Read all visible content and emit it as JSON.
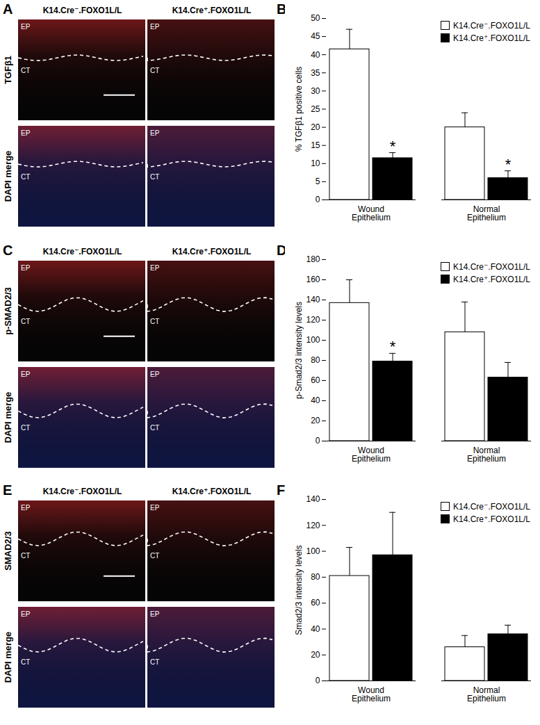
{
  "image_panels": [
    {
      "panel": "A",
      "columns": [
        "K14.Cre⁻.FOXO1L/L",
        "K14.Cre⁺.FOXO1L/L"
      ],
      "rows": [
        "TGFβ1",
        "DAPI merge"
      ],
      "regions": [
        "EP",
        "CT"
      ]
    },
    {
      "panel": "C",
      "columns": [
        "K14.Cre⁻.FOXO1L/L",
        "K14.Cre⁺.FOXO1L/L"
      ],
      "rows": [
        "p-SMAD2/3",
        "DAPI merge"
      ],
      "regions": [
        "EP",
        "CT"
      ]
    },
    {
      "panel": "E",
      "columns": [
        "K14.Cre⁻.FOXO1L/L",
        "K14.Cre⁺.FOXO1L/L"
      ],
      "rows": [
        "SMAD2/3",
        "DAPI merge"
      ],
      "regions": [
        "EP",
        "CT"
      ]
    }
  ],
  "chart_data": [
    {
      "panel": "B",
      "type": "bar",
      "categories": [
        "Wound Epithelium",
        "Normal Epithelium"
      ],
      "ylabel": "% TGFβ1 positive cells",
      "ylim": [
        0,
        50
      ],
      "yticks": [
        0,
        5,
        10,
        15,
        20,
        25,
        30,
        35,
        40,
        45,
        50
      ],
      "legend": "top-right",
      "series": [
        {
          "name": "K14.Cre⁻.FOXO1L/L",
          "color": "#ffffff",
          "values": [
            41.5,
            20
          ],
          "errors": [
            5.5,
            4
          ],
          "annotations": [
            null,
            null
          ]
        },
        {
          "name": "K14.Cre⁺.FOXO1L/L",
          "color": "#000000",
          "values": [
            11.5,
            6
          ],
          "errors": [
            1.5,
            2
          ],
          "annotations": [
            "*",
            "*"
          ]
        }
      ]
    },
    {
      "panel": "D",
      "type": "bar",
      "categories": [
        "Wound Epithelium",
        "Normal Epithelium"
      ],
      "ylabel": "p-Smad2/3 intensity levels",
      "ylim": [
        0,
        180
      ],
      "yticks": [
        0,
        20,
        40,
        60,
        80,
        100,
        120,
        140,
        160,
        180
      ],
      "legend": "top-right",
      "series": [
        {
          "name": "K14.Cre⁻.FOXO1L/L",
          "color": "#ffffff",
          "values": [
            137,
            108
          ],
          "errors": [
            23,
            30
          ],
          "annotations": [
            null,
            null
          ]
        },
        {
          "name": "K14.Cre⁺.FOXO1L/L",
          "color": "#000000",
          "values": [
            79,
            63
          ],
          "errors": [
            8,
            15
          ],
          "annotations": [
            "*",
            null
          ]
        }
      ]
    },
    {
      "panel": "F",
      "type": "bar",
      "categories": [
        "Wound Epithelium",
        "Normal Epithelium"
      ],
      "ylabel": "Smad2/3 intensity levels",
      "ylim": [
        0,
        140
      ],
      "yticks": [
        0,
        20,
        40,
        60,
        80,
        100,
        120,
        140
      ],
      "legend": "top-right",
      "series": [
        {
          "name": "K14.Cre⁻.FOXO1L/L",
          "color": "#ffffff",
          "values": [
            81,
            26
          ],
          "errors": [
            22,
            9
          ],
          "annotations": [
            null,
            null
          ]
        },
        {
          "name": "K14.Cre⁺.FOXO1L/L",
          "color": "#000000",
          "values": [
            97,
            36
          ],
          "errors": [
            33,
            7
          ],
          "annotations": [
            null,
            null
          ]
        }
      ]
    }
  ]
}
